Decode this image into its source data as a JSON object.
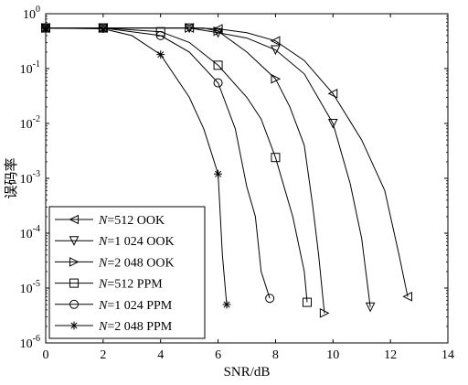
{
  "chart_data": {
    "type": "line",
    "title": "",
    "xlabel": "SNR/dB",
    "ylabel": "误码率",
    "xlim": [
      0,
      14
    ],
    "ylim": [
      1e-06,
      1
    ],
    "yscale": "log",
    "grid": false,
    "legend_position": "bottom-left",
    "x_ticks": [
      0,
      2,
      4,
      6,
      8,
      10,
      12,
      14
    ],
    "x_tick_labels": [
      "0",
      "2",
      "4",
      "6",
      "8",
      "10",
      "12",
      "14"
    ],
    "y_ticks": [
      1,
      0.1,
      0.01,
      0.001,
      0.0001,
      1e-05,
      1e-06
    ],
    "y_tick_labels": [
      {
        "base": "10",
        "exp": "0"
      },
      {
        "base": "10",
        "exp": "-1"
      },
      {
        "base": "10",
        "exp": "-2"
      },
      {
        "base": "10",
        "exp": "-3"
      },
      {
        "base": "10",
        "exp": "-4"
      },
      {
        "base": "10",
        "exp": "-5"
      },
      {
        "base": "10",
        "exp": "-6"
      }
    ],
    "series": [
      {
        "name_prefix": "N",
        "name_suffix": "=512 OOK",
        "marker": "triangle-left",
        "line": [
          [
            0,
            0.55
          ],
          [
            3,
            0.55
          ],
          [
            5,
            0.55
          ],
          [
            6,
            0.53
          ],
          [
            7,
            0.45
          ],
          [
            8,
            0.32
          ],
          [
            9,
            0.14
          ],
          [
            10,
            0.035
          ],
          [
            11,
            0.005
          ],
          [
            11.8,
            0.0006
          ],
          [
            12.3,
            4e-05
          ],
          [
            12.6,
            7e-06
          ]
        ],
        "markers": [
          [
            0,
            0.55
          ],
          [
            2,
            0.55
          ],
          [
            5,
            0.55
          ],
          [
            6,
            0.53
          ],
          [
            8,
            0.32
          ],
          [
            10,
            0.035
          ],
          [
            12.6,
            7e-06
          ]
        ]
      },
      {
        "name_prefix": "N",
        "name_suffix": "=1 024 OOK",
        "marker": "triangle-down",
        "line": [
          [
            0,
            0.55
          ],
          [
            3,
            0.55
          ],
          [
            5,
            0.55
          ],
          [
            6,
            0.45
          ],
          [
            7,
            0.36
          ],
          [
            8,
            0.22
          ],
          [
            9,
            0.08
          ],
          [
            10,
            0.01
          ],
          [
            10.6,
            0.0008
          ],
          [
            11,
            8e-05
          ],
          [
            11.3,
            4.5e-06
          ]
        ],
        "markers": [
          [
            0,
            0.55
          ],
          [
            2,
            0.55
          ],
          [
            5,
            0.55
          ],
          [
            6,
            0.45
          ],
          [
            8,
            0.22
          ],
          [
            10,
            0.01
          ],
          [
            11.3,
            4.5e-06
          ]
        ]
      },
      {
        "name_prefix": "N",
        "name_suffix": "=2 048 OOK",
        "marker": "triangle-right",
        "line": [
          [
            0,
            0.55
          ],
          [
            3,
            0.55
          ],
          [
            5,
            0.55
          ],
          [
            5.5,
            0.55
          ],
          [
            6,
            0.48
          ],
          [
            7,
            0.2
          ],
          [
            8,
            0.065
          ],
          [
            8.5,
            0.02
          ],
          [
            9,
            0.004
          ],
          [
            9.3,
            0.0003
          ],
          [
            9.5,
            4e-05
          ],
          [
            9.7,
            3.5e-06
          ]
        ],
        "markers": [
          [
            0,
            0.55
          ],
          [
            2,
            0.55
          ],
          [
            5,
            0.55
          ],
          [
            6,
            0.48
          ],
          [
            8,
            0.065
          ],
          [
            9.7,
            3.5e-06
          ]
        ]
      },
      {
        "name_prefix": "N",
        "name_suffix": "=512 PPM",
        "marker": "square",
        "line": [
          [
            0,
            0.55
          ],
          [
            2,
            0.55
          ],
          [
            4,
            0.47
          ],
          [
            5,
            0.3
          ],
          [
            6,
            0.115
          ],
          [
            7,
            0.03
          ],
          [
            7.5,
            0.012
          ],
          [
            8,
            0.0024
          ],
          [
            8.6,
            0.0002
          ],
          [
            9,
            2e-05
          ],
          [
            9.1,
            5.5e-06
          ]
        ],
        "markers": [
          [
            0,
            0.55
          ],
          [
            2,
            0.55
          ],
          [
            4,
            0.47
          ],
          [
            6,
            0.115
          ],
          [
            8,
            0.0024
          ],
          [
            9.1,
            5.5e-06
          ]
        ]
      },
      {
        "name_prefix": "N",
        "name_suffix": "=1 024 PPM",
        "marker": "circle",
        "line": [
          [
            0,
            0.55
          ],
          [
            2,
            0.55
          ],
          [
            4,
            0.4
          ],
          [
            5,
            0.2
          ],
          [
            6,
            0.055
          ],
          [
            6.6,
            0.008
          ],
          [
            7,
            0.0007
          ],
          [
            7.3,
            0.0002
          ],
          [
            7.5,
            2e-05
          ],
          [
            7.8,
            6.5e-06
          ]
        ],
        "markers": [
          [
            0,
            0.55
          ],
          [
            2,
            0.55
          ],
          [
            4,
            0.4
          ],
          [
            6,
            0.055
          ],
          [
            7.8,
            6.5e-06
          ]
        ]
      },
      {
        "name_prefix": "N",
        "name_suffix": "=2 048 PPM",
        "marker": "star",
        "line": [
          [
            0,
            0.55
          ],
          [
            2,
            0.53
          ],
          [
            3,
            0.4
          ],
          [
            4,
            0.18
          ],
          [
            5,
            0.03
          ],
          [
            5.5,
            0.008
          ],
          [
            6,
            0.0012
          ],
          [
            6.15,
            4e-05
          ],
          [
            6.3,
            5e-06
          ]
        ],
        "markers": [
          [
            0,
            0.55
          ],
          [
            2,
            0.53
          ],
          [
            4,
            0.18
          ],
          [
            6,
            0.0012
          ],
          [
            6.3,
            5e-06
          ]
        ]
      }
    ]
  }
}
